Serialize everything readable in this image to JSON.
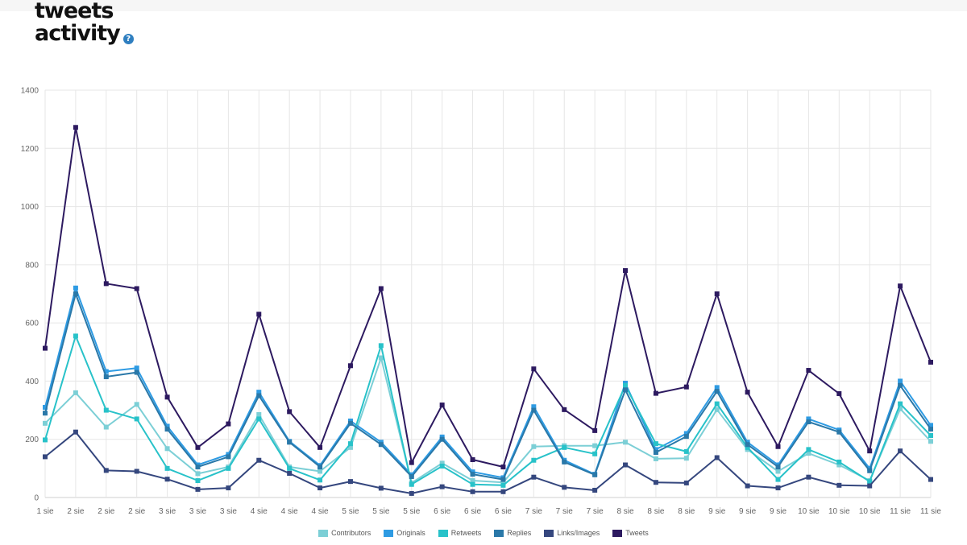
{
  "header": {
    "title_line1": "tweets",
    "title_line2": "activity",
    "help_glyph": "?"
  },
  "chart_data": {
    "type": "line",
    "title": "tweets activity",
    "xlabel": "",
    "ylabel": "",
    "ylim": [
      0,
      1400
    ],
    "yticks": [
      0,
      200,
      400,
      600,
      800,
      1000,
      1200,
      1400
    ],
    "grid": true,
    "legend_position": "bottom-center",
    "categories": [
      "1 sie",
      "2 sie",
      "2 sie",
      "2 sie",
      "3 sie",
      "3 sie",
      "3 sie",
      "4 sie",
      "4 sie",
      "4 sie",
      "5 sie",
      "5 sie",
      "5 sie",
      "6 sie",
      "6 sie",
      "6 sie",
      "7 sie",
      "7 sie",
      "7 sie",
      "8 sie",
      "8 sie",
      "8 sie",
      "9 sie",
      "9 sie",
      "9 sie",
      "10 sie",
      "10 sie",
      "10 sie",
      "11 sie",
      "11 sie"
    ],
    "series": [
      {
        "name": "Contributors",
        "color": "#7ccfd6",
        "values": [
          255,
          360,
          242,
          320,
          168,
          82,
          105,
          285,
          105,
          90,
          172,
          480,
          50,
          118,
          58,
          52,
          175,
          178,
          178,
          190,
          133,
          135,
          302,
          165,
          90,
          152,
          112,
          58,
          305,
          193
        ]
      },
      {
        "name": "Originals",
        "color": "#2e9be3",
        "values": [
          310,
          720,
          433,
          445,
          245,
          112,
          148,
          362,
          193,
          110,
          263,
          190,
          78,
          208,
          88,
          68,
          312,
          128,
          80,
          393,
          165,
          220,
          378,
          190,
          112,
          270,
          232,
          100,
          400,
          248
        ]
      },
      {
        "name": "Retweets",
        "color": "#28c2c9",
        "values": [
          198,
          555,
          300,
          270,
          100,
          58,
          100,
          270,
          100,
          60,
          185,
          522,
          45,
          108,
          45,
          42,
          128,
          172,
          150,
          385,
          185,
          158,
          322,
          172,
          62,
          165,
          122,
          55,
          322,
          213
        ]
      },
      {
        "name": "Replies",
        "color": "#2a78a8",
        "values": [
          290,
          700,
          415,
          430,
          235,
          105,
          140,
          350,
          190,
          105,
          255,
          182,
          72,
          200,
          80,
          62,
          300,
          122,
          78,
          370,
          155,
          210,
          365,
          182,
          105,
          260,
          225,
          92,
          385,
          235
        ]
      },
      {
        "name": "Links/Images",
        "color": "#35477e",
        "values": [
          140,
          225,
          93,
          90,
          63,
          28,
          33,
          128,
          83,
          33,
          55,
          32,
          14,
          37,
          20,
          20,
          70,
          35,
          25,
          112,
          52,
          50,
          137,
          40,
          33,
          70,
          42,
          40,
          160,
          62
        ]
      },
      {
        "name": "Tweets",
        "color": "#2d1a60",
        "values": [
          513,
          1272,
          735,
          718,
          345,
          172,
          253,
          630,
          295,
          172,
          453,
          718,
          120,
          318,
          130,
          105,
          442,
          302,
          230,
          780,
          358,
          380,
          700,
          362,
          175,
          437,
          357,
          160,
          727,
          465
        ]
      }
    ]
  }
}
